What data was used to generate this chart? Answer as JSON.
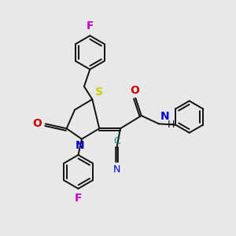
{
  "bg_color": "#e8e8e8",
  "atom_colors": {
    "S": "#cccc00",
    "N": "#0000cc",
    "O": "#cc0000",
    "F": "#cc00cc",
    "C": "#111111",
    "H": "#111111"
  },
  "bond_color": "#111111",
  "font_size": 9,
  "figsize": [
    3.0,
    3.0
  ],
  "dpi": 100,
  "lw": 1.4
}
